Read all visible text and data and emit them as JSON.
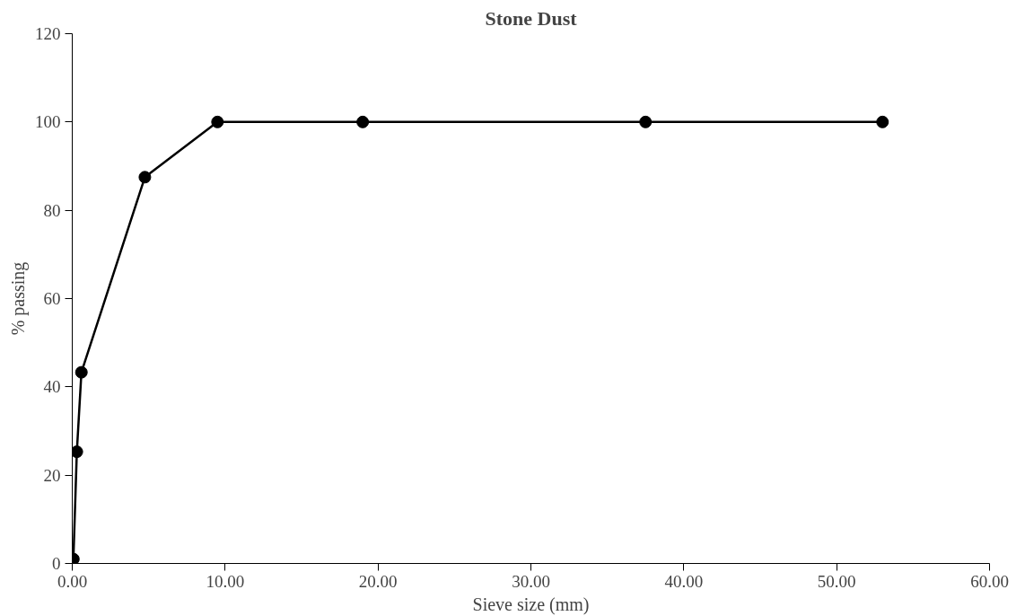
{
  "chart_data": {
    "type": "line",
    "title": "Stone Dust",
    "xlabel": "Sieve size (mm)",
    "ylabel": "% passing",
    "x": [
      0.075,
      0.3,
      0.6,
      4.75,
      9.5,
      19,
      37.5,
      53
    ],
    "series": [
      {
        "color": "#000000",
        "values": [
          1,
          25.3,
          43.3,
          87.5,
          100,
          100,
          100,
          100
        ]
      }
    ],
    "xlim": [
      0,
      60
    ],
    "xticks": [
      {
        "value": 0,
        "label": "0.00"
      },
      {
        "value": 10,
        "label": "10.00"
      },
      {
        "value": 20,
        "label": "20.00"
      },
      {
        "value": 30,
        "label": "30.00"
      },
      {
        "value": 40,
        "label": "40.00"
      },
      {
        "value": 50,
        "label": "50.00"
      },
      {
        "value": 60,
        "label": "60.00"
      }
    ],
    "ylim": [
      0,
      120
    ],
    "yticks": [
      0,
      20,
      40,
      60,
      80,
      100,
      120
    ],
    "grid": false,
    "marker": "circle",
    "line_style": "solid"
  }
}
